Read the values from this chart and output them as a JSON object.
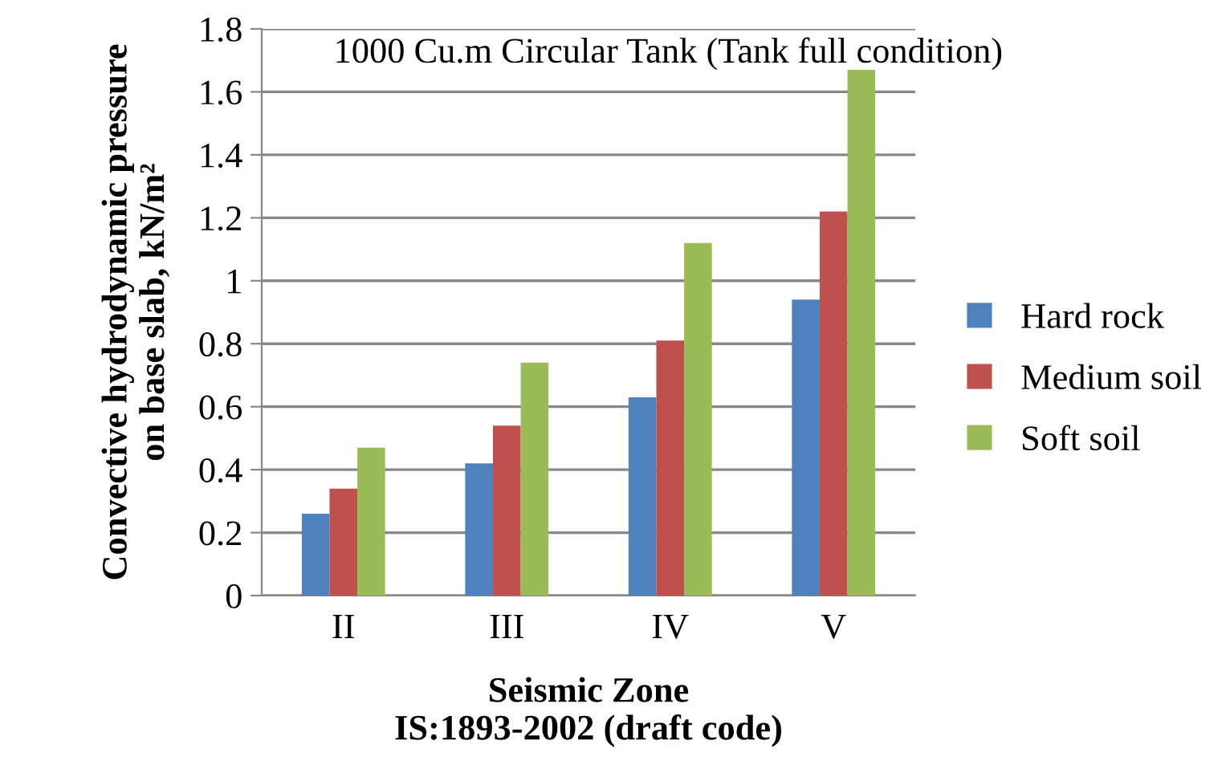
{
  "chart_data": {
    "type": "bar",
    "title": "1000 Cu.m Circular Tank (Tank full condition)",
    "xlabel": "Seismic Zone\nIS:1893-2002 (draft code)",
    "ylabel": "Convective hydrodynamic pressure\non base slab, kN/m²",
    "categories": [
      "II",
      "III",
      "IV",
      "V"
    ],
    "series": [
      {
        "name": "Hard rock",
        "color": "#4f81bd",
        "values": [
          0.26,
          0.42,
          0.63,
          0.94
        ]
      },
      {
        "name": "Medium soil",
        "color": "#c0504d",
        "values": [
          0.34,
          0.54,
          0.81,
          1.22
        ]
      },
      {
        "name": "Soft soil",
        "color": "#9bbb59",
        "values": [
          0.47,
          0.74,
          1.12,
          1.67
        ]
      }
    ],
    "ylim": [
      0,
      1.8
    ],
    "yticks": [
      0,
      0.2,
      0.4,
      0.6,
      0.8,
      1,
      1.2,
      1.4,
      1.6,
      1.8
    ],
    "grid": "y",
    "legend": "right"
  }
}
